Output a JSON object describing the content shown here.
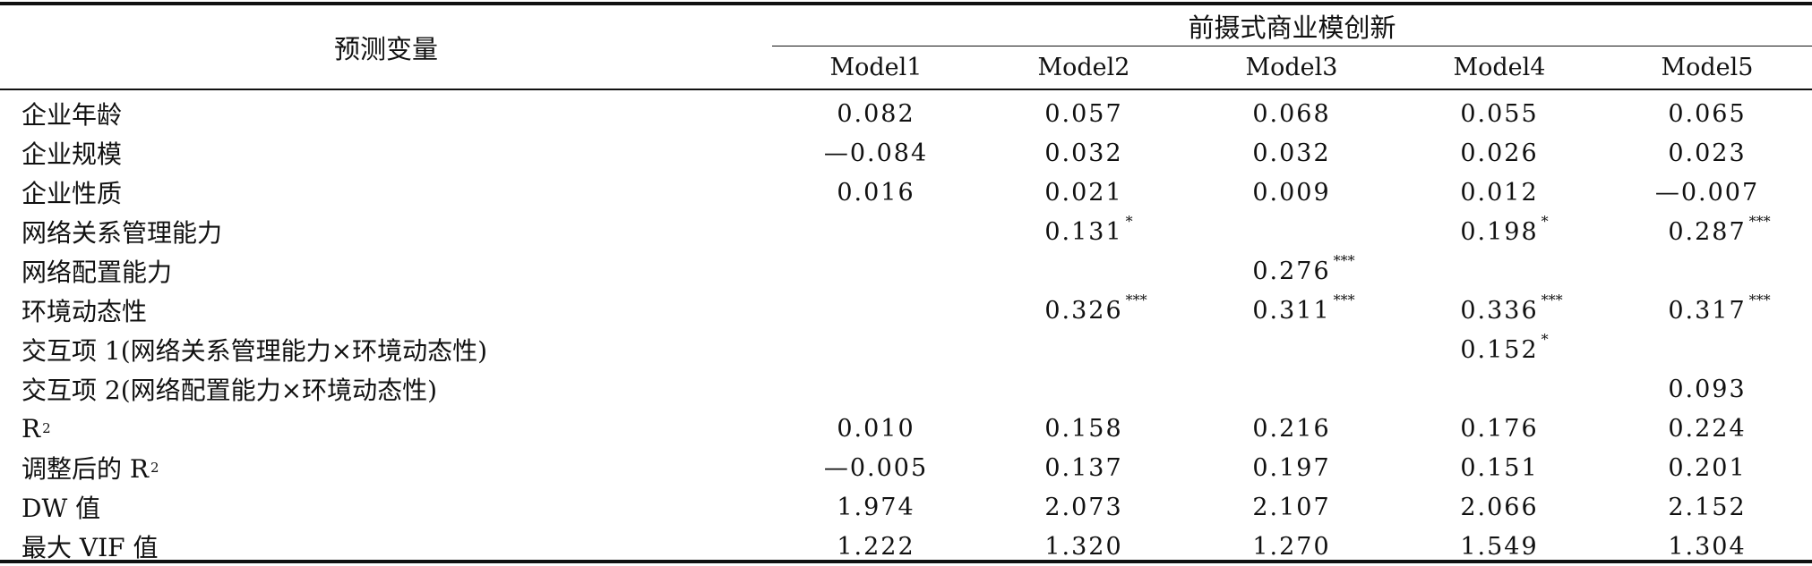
{
  "header": {
    "predictor_label": "预测变量",
    "group_label": "前摄式商业模创新",
    "models": [
      "Model1",
      "Model2",
      "Model3",
      "Model4",
      "Model5"
    ]
  },
  "rows": [
    {
      "label": "企业年龄",
      "sup": "",
      "values": [
        [
          "0.082",
          ""
        ],
        [
          "0.057",
          ""
        ],
        [
          "0.068",
          ""
        ],
        [
          "0.055",
          ""
        ],
        [
          "0.065",
          ""
        ]
      ]
    },
    {
      "label": "企业规模",
      "sup": "",
      "values": [
        [
          "—0.084",
          ""
        ],
        [
          "0.032",
          ""
        ],
        [
          "0.032",
          ""
        ],
        [
          "0.026",
          ""
        ],
        [
          "0.023",
          ""
        ]
      ]
    },
    {
      "label": "企业性质",
      "sup": "",
      "values": [
        [
          "0.016",
          ""
        ],
        [
          "0.021",
          ""
        ],
        [
          "0.009",
          ""
        ],
        [
          "0.012",
          ""
        ],
        [
          "—0.007",
          ""
        ]
      ]
    },
    {
      "label": "网络关系管理能力",
      "sup": "",
      "values": [
        [
          "",
          ""
        ],
        [
          "0.131",
          "*"
        ],
        [
          "",
          ""
        ],
        [
          "0.198",
          "*"
        ],
        [
          "0.287",
          "***"
        ]
      ]
    },
    {
      "label": "网络配置能力",
      "sup": "",
      "values": [
        [
          "",
          ""
        ],
        [
          "",
          ""
        ],
        [
          "0.276",
          "***"
        ],
        [
          "",
          ""
        ],
        [
          "",
          ""
        ]
      ]
    },
    {
      "label": "环境动态性",
      "sup": "",
      "values": [
        [
          "",
          ""
        ],
        [
          "0.326",
          "***"
        ],
        [
          "0.311",
          "***"
        ],
        [
          "0.336",
          "***"
        ],
        [
          "0.317",
          "***"
        ]
      ]
    },
    {
      "label": "交互项 1(网络关系管理能力×环境动态性)",
      "sup": "",
      "values": [
        [
          "",
          ""
        ],
        [
          "",
          ""
        ],
        [
          "",
          ""
        ],
        [
          "0.152",
          "*"
        ],
        [
          "",
          ""
        ]
      ]
    },
    {
      "label": "交互项 2(网络配置能力×环境动态性)",
      "sup": "",
      "values": [
        [
          "",
          ""
        ],
        [
          "",
          ""
        ],
        [
          "",
          ""
        ],
        [
          "",
          ""
        ],
        [
          "0.093",
          ""
        ]
      ]
    },
    {
      "label": "R",
      "sup": "2",
      "values": [
        [
          "0.010",
          ""
        ],
        [
          "0.158",
          ""
        ],
        [
          "0.216",
          ""
        ],
        [
          "0.176",
          ""
        ],
        [
          "0.224",
          ""
        ]
      ]
    },
    {
      "label": "调整后的 R",
      "sup": "2",
      "values": [
        [
          "—0.005",
          ""
        ],
        [
          "0.137",
          ""
        ],
        [
          "0.197",
          ""
        ],
        [
          "0.151",
          ""
        ],
        [
          "0.201",
          ""
        ]
      ]
    },
    {
      "label": "DW 值",
      "sup": "",
      "values": [
        [
          "1.974",
          ""
        ],
        [
          "2.073",
          ""
        ],
        [
          "2.107",
          ""
        ],
        [
          "2.066",
          ""
        ],
        [
          "2.152",
          ""
        ]
      ]
    },
    {
      "label": "最大 VIF 值",
      "sup": "",
      "values": [
        [
          "1.222",
          ""
        ],
        [
          "1.320",
          ""
        ],
        [
          "1.270",
          ""
        ],
        [
          "1.549",
          ""
        ],
        [
          "1.304",
          ""
        ]
      ]
    }
  ]
}
